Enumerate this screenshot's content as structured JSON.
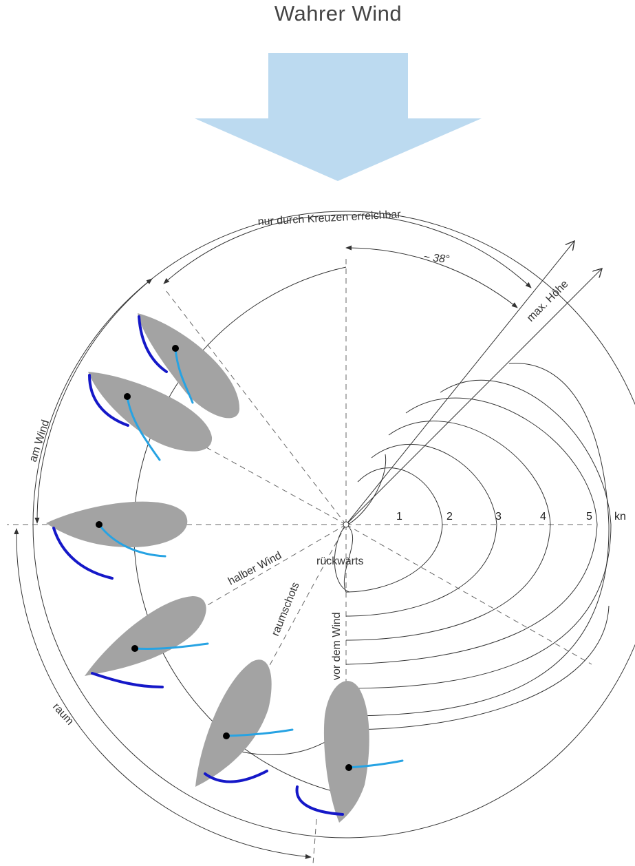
{
  "title": "Wahrer Wind",
  "colors": {
    "wind_arrow": "#bcdaf0",
    "hull": "#a3a3a3",
    "jib": "#1518c8",
    "mainsail": "#27a3e3",
    "lines": "#333333"
  },
  "labels": {
    "no_go_zone": "nur durch Kreuzen erreichbar",
    "angle": "~ 38°",
    "max_height": "max. Höhe",
    "close_hauled": "am Wind",
    "beam_reach": "halber Wind",
    "broad_reach": "raumschots",
    "running": "vor dem Wind",
    "backwards": "rückwärts",
    "reach": "raum",
    "unit": "kn"
  },
  "speed_scale": [
    "1",
    "2",
    "3",
    "4",
    "5"
  ]
}
